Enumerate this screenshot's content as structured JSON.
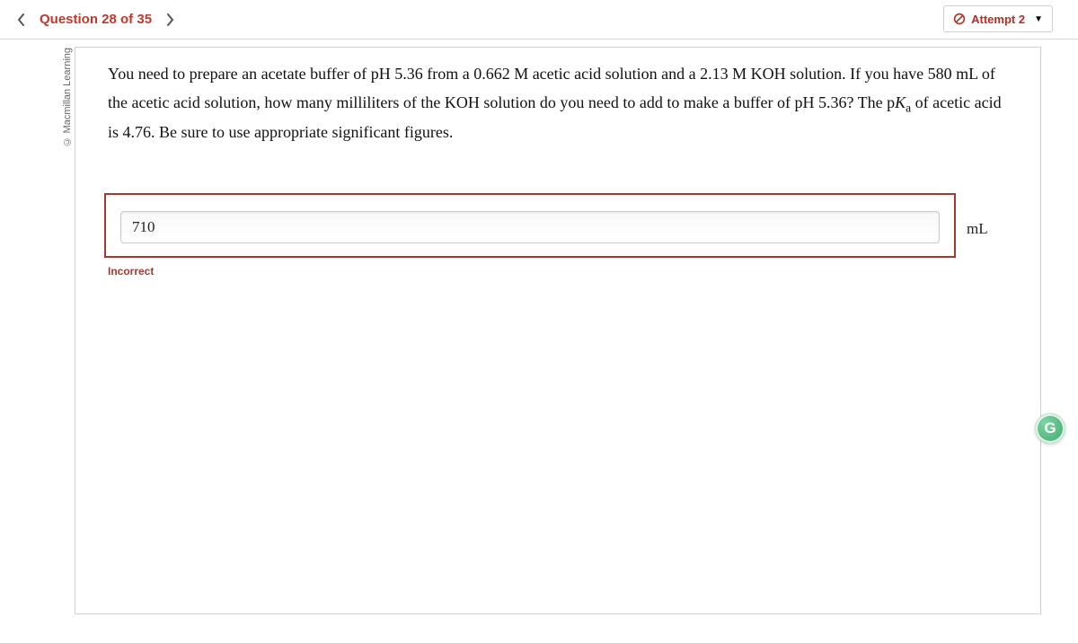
{
  "header": {
    "question_label": "Question 28 of 35",
    "attempt_label": "Attempt 2"
  },
  "copyright": "© Macmillan Learning",
  "question": {
    "html": "You need to prepare an acetate buffer of pH 5.36 from a 0.662 M acetic acid solution and a 2.13 M KOH solution. If you have 580 mL of the acetic acid solution, how many milliliters of the KOH solution do you need to add to make a buffer of pH 5.36? The p<i>K</i><sub>a</sub> of acetic acid is 4.76. Be sure to use appropriate significant figures."
  },
  "answer": {
    "value": "710",
    "unit": "mL",
    "feedback": "Incorrect"
  },
  "float_badge": "G",
  "colors": {
    "accent_red": "#a13a30",
    "title_red": "#c0392b",
    "border_gray": "#d0d0d0",
    "badge_green": "#2e9e5b"
  }
}
